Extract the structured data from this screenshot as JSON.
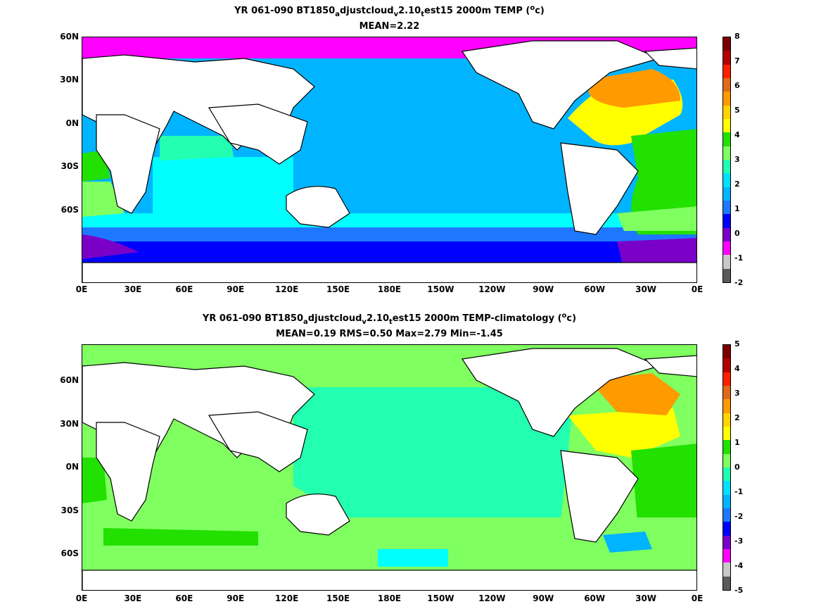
{
  "top": {
    "title_prefix": "YR 061-090 BT1850",
    "title_sub1": "a",
    "title_mid1": "djustcloud",
    "title_sub2": "v",
    "title_mid2": "2.10",
    "title_sub3": "t",
    "title_mid3": "est15 2000m TEMP (",
    "title_sup": "o",
    "title_end": "c)",
    "stats": "MEAN=2.22",
    "colorbar_ticks": [
      "8",
      "7",
      "6",
      "5",
      "4",
      "3",
      "2",
      "1",
      "0",
      "-1",
      "-2"
    ]
  },
  "bottom": {
    "title_prefix": "YR 061-090 BT1850",
    "title_sub1": "a",
    "title_mid1": "djustcloud",
    "title_sub2": "v",
    "title_mid2": "2.10",
    "title_sub3": "t",
    "title_mid3": "est15 2000m TEMP-climatology (",
    "title_sup": "o",
    "title_end": "c)",
    "stats": "MEAN=0.19   RMS=0.50   Max=2.79   Min=-1.45",
    "colorbar_ticks": [
      "5",
      "4",
      "3",
      "2",
      "1",
      "0",
      "-1",
      "-2",
      "-3",
      "-4",
      "-5"
    ]
  },
  "axes": {
    "x_ticks": [
      "0E",
      "30E",
      "60E",
      "90E",
      "120E",
      "150E",
      "180E",
      "150W",
      "120W",
      "90W",
      "60W",
      "30W",
      "0E"
    ],
    "y_ticks": [
      "60N",
      "30N",
      "0N",
      "30S",
      "60S"
    ]
  },
  "colorbar_colors": [
    "#7a0000",
    "#b20000",
    "#ff2000",
    "#e06a1a",
    "#ff9a00",
    "#ffd400",
    "#ffff00",
    "#22e000",
    "#80ff60",
    "#22ffb0",
    "#00e0ff",
    "#00b4ff",
    "#1e78ff",
    "#0000ff",
    "#7a00c8",
    "#ff00ff",
    "#c8c8c8",
    "#5a5a5a"
  ]
}
